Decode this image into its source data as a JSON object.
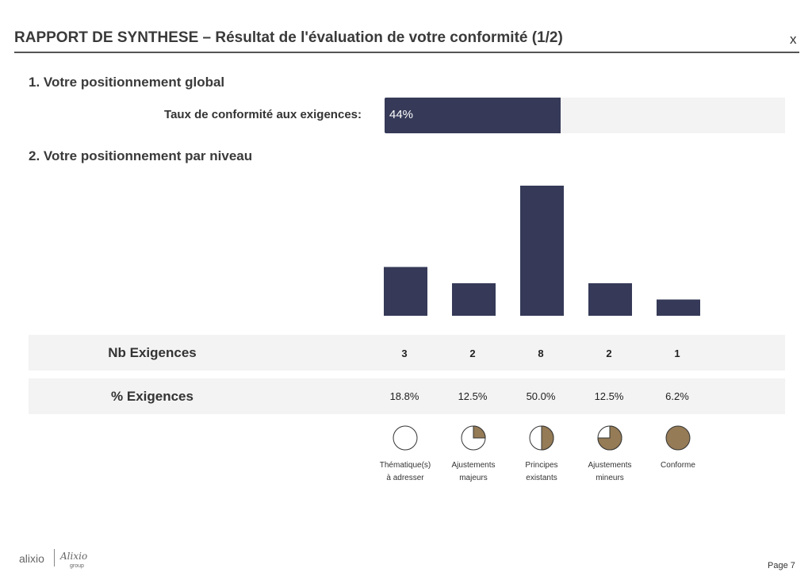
{
  "header": {
    "title": "RAPPORT DE SYNTHESE – Résultat de l'évaluation de votre conformité (1/2)",
    "close_label": "x"
  },
  "section1": {
    "heading": "1. Votre positionnement global",
    "rate_label": "Taux de conformité aux exigences:",
    "rate_value": "44%",
    "rate_fraction": 0.44
  },
  "section2": {
    "heading": "2. Votre positionnement par niveau"
  },
  "chart_data": {
    "type": "bar",
    "categories": [
      "Thématique(s) à adresser",
      "Ajustements majeurs",
      "Principes existants",
      "Ajustements mineurs",
      "Conforme"
    ],
    "values": [
      3,
      2,
      8,
      2,
      1
    ],
    "percentages": [
      18.8,
      12.5,
      50.0,
      12.5,
      6.2
    ],
    "bar_color": "#363a58",
    "grid": false,
    "ylim": [
      0,
      8
    ]
  },
  "table": {
    "nb_title": "Nb Exigences",
    "pct_title": "% Exigences",
    "nb_values": [
      "3",
      "2",
      "8",
      "2",
      "1"
    ],
    "pct_values": [
      "18.8%",
      "12.5%",
      "50.0%",
      "12.5%",
      "6.2%"
    ]
  },
  "legend": {
    "fill_color": "#957b56",
    "items": [
      {
        "line1": "Thématique(s)",
        "line2": "à adresser",
        "fill_quarters": 0
      },
      {
        "line1": "Ajustements",
        "line2": "majeurs",
        "fill_quarters": 1
      },
      {
        "line1": "Principes",
        "line2": "existants",
        "fill_quarters": 2
      },
      {
        "line1": "Ajustements",
        "line2": "mineurs",
        "fill_quarters": 3
      },
      {
        "line1": "Conforme",
        "line2": "",
        "fill_quarters": 4
      }
    ]
  },
  "footer": {
    "logo_text": "alixio",
    "logo_script": "Alixio",
    "logo_group": "group",
    "page_label": "Page 7"
  }
}
